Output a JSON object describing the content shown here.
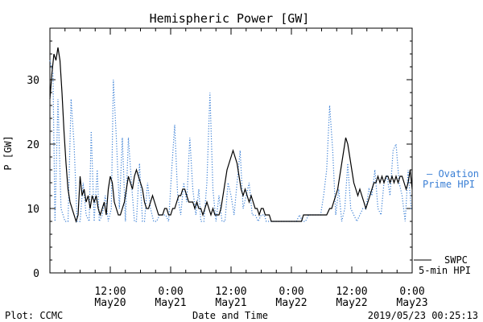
{
  "chart_data": {
    "type": "line",
    "title": "Hemispheric Power [GW]",
    "xlabel": "Date and Time",
    "ylabel": "P [GW]",
    "ylim": [
      0,
      38
    ],
    "grid": false,
    "x_ticks": [
      {
        "t": 12,
        "time": "12:00",
        "date": "May20"
      },
      {
        "t": 24,
        "time": "0:00",
        "date": "May21"
      },
      {
        "t": 36,
        "time": "12:00",
        "date": "May21"
      },
      {
        "t": 48,
        "time": "0:00",
        "date": "May22"
      },
      {
        "t": 60,
        "time": "12:00",
        "date": "May22"
      },
      {
        "t": 72,
        "time": "0:00",
        "date": "May23"
      }
    ],
    "y_ticks": [
      0,
      10,
      20,
      30
    ],
    "x_range_hours": [
      0,
      72
    ],
    "series": [
      {
        "name": "SWPC 5-min HPI",
        "color": "#000000",
        "style": "solid",
        "points": [
          [
            0,
            27
          ],
          [
            0.4,
            31
          ],
          [
            0.8,
            34
          ],
          [
            1.2,
            33
          ],
          [
            1.6,
            35
          ],
          [
            2.0,
            33
          ],
          [
            2.4,
            28
          ],
          [
            2.8,
            22
          ],
          [
            3.2,
            17
          ],
          [
            3.6,
            13
          ],
          [
            4.0,
            11
          ],
          [
            4.4,
            10
          ],
          [
            4.8,
            9
          ],
          [
            5.2,
            8
          ],
          [
            5.6,
            9
          ],
          [
            6.0,
            15
          ],
          [
            6.4,
            12
          ],
          [
            6.8,
            13
          ],
          [
            7.2,
            11
          ],
          [
            7.6,
            12
          ],
          [
            8.0,
            10
          ],
          [
            8.4,
            12
          ],
          [
            8.8,
            11
          ],
          [
            9.2,
            12
          ],
          [
            9.6,
            10
          ],
          [
            10.0,
            9
          ],
          [
            10.4,
            10
          ],
          [
            10.8,
            11
          ],
          [
            11.2,
            9
          ],
          [
            11.6,
            13
          ],
          [
            12.0,
            15
          ],
          [
            12.4,
            14
          ],
          [
            12.8,
            11
          ],
          [
            13.2,
            10
          ],
          [
            13.6,
            9
          ],
          [
            14.0,
            9
          ],
          [
            14.4,
            10
          ],
          [
            14.8,
            11
          ],
          [
            15.2,
            13
          ],
          [
            15.6,
            15
          ],
          [
            16.0,
            14
          ],
          [
            16.4,
            13
          ],
          [
            16.8,
            15
          ],
          [
            17.2,
            16
          ],
          [
            17.6,
            15
          ],
          [
            18.0,
            14
          ],
          [
            18.4,
            13
          ],
          [
            18.8,
            11
          ],
          [
            19.2,
            10
          ],
          [
            19.6,
            10
          ],
          [
            20.0,
            11
          ],
          [
            20.4,
            12
          ],
          [
            20.8,
            11
          ],
          [
            21.2,
            10
          ],
          [
            21.6,
            9
          ],
          [
            22.0,
            9
          ],
          [
            22.4,
            9
          ],
          [
            22.8,
            10
          ],
          [
            23.2,
            10
          ],
          [
            23.6,
            9
          ],
          [
            24.0,
            9
          ],
          [
            24.4,
            10
          ],
          [
            24.8,
            10
          ],
          [
            25.2,
            11
          ],
          [
            25.6,
            12
          ],
          [
            26.0,
            12
          ],
          [
            26.4,
            13
          ],
          [
            26.8,
            13
          ],
          [
            27.2,
            12
          ],
          [
            27.6,
            11
          ],
          [
            28.0,
            11
          ],
          [
            28.4,
            11
          ],
          [
            28.8,
            10
          ],
          [
            29.2,
            11
          ],
          [
            29.6,
            10
          ],
          [
            30.0,
            10
          ],
          [
            30.4,
            9
          ],
          [
            30.8,
            10
          ],
          [
            31.2,
            11
          ],
          [
            31.6,
            10
          ],
          [
            32.0,
            9
          ],
          [
            32.4,
            10
          ],
          [
            32.8,
            9
          ],
          [
            33.2,
            9
          ],
          [
            33.6,
            9
          ],
          [
            34.0,
            10
          ],
          [
            34.4,
            12
          ],
          [
            34.8,
            14
          ],
          [
            35.2,
            16
          ],
          [
            35.6,
            17
          ],
          [
            36.0,
            18
          ],
          [
            36.4,
            19
          ],
          [
            36.8,
            18
          ],
          [
            37.2,
            17
          ],
          [
            37.6,
            15
          ],
          [
            38.0,
            13
          ],
          [
            38.4,
            12
          ],
          [
            38.8,
            13
          ],
          [
            39.2,
            12
          ],
          [
            39.6,
            11
          ],
          [
            40.0,
            12
          ],
          [
            40.4,
            11
          ],
          [
            40.8,
            10
          ],
          [
            41.2,
            10
          ],
          [
            41.6,
            9
          ],
          [
            42.0,
            10
          ],
          [
            42.4,
            10
          ],
          [
            42.8,
            9
          ],
          [
            43.2,
            9
          ],
          [
            43.6,
            9
          ],
          [
            44.0,
            8
          ],
          [
            46.0,
            8
          ],
          [
            48.0,
            8
          ],
          [
            50.0,
            8
          ],
          [
            50.4,
            9
          ],
          [
            51.0,
            9
          ],
          [
            52.0,
            9
          ],
          [
            53.0,
            9
          ],
          [
            54.0,
            9
          ],
          [
            55.0,
            9
          ],
          [
            55.6,
            10
          ],
          [
            56.0,
            10
          ],
          [
            56.4,
            11
          ],
          [
            56.8,
            12
          ],
          [
            57.2,
            13
          ],
          [
            57.6,
            15
          ],
          [
            58.0,
            17
          ],
          [
            58.4,
            19
          ],
          [
            58.8,
            21
          ],
          [
            59.2,
            20
          ],
          [
            59.6,
            18
          ],
          [
            60.0,
            16
          ],
          [
            60.4,
            14
          ],
          [
            60.8,
            13
          ],
          [
            61.2,
            12
          ],
          [
            61.6,
            13
          ],
          [
            62.0,
            12
          ],
          [
            62.4,
            11
          ],
          [
            62.8,
            10
          ],
          [
            63.2,
            11
          ],
          [
            63.6,
            12
          ],
          [
            64.0,
            13
          ],
          [
            64.4,
            14
          ],
          [
            64.8,
            14
          ],
          [
            65.2,
            15
          ],
          [
            65.6,
            14
          ],
          [
            66.0,
            15
          ],
          [
            66.4,
            14
          ],
          [
            66.8,
            15
          ],
          [
            67.2,
            15
          ],
          [
            67.6,
            14
          ],
          [
            68.0,
            15
          ],
          [
            68.4,
            14
          ],
          [
            68.8,
            15
          ],
          [
            69.2,
            14
          ],
          [
            69.6,
            15
          ],
          [
            70.0,
            15
          ],
          [
            70.4,
            14
          ],
          [
            70.8,
            13
          ],
          [
            71.2,
            14
          ],
          [
            71.6,
            16
          ],
          [
            72.0,
            13
          ]
        ]
      },
      {
        "name": "Ovation Prime HPI",
        "color": "#3a7fd5",
        "style": "dotted",
        "points": [
          [
            0,
            33
          ],
          [
            0.6,
            31
          ],
          [
            1.0,
            8
          ],
          [
            1.6,
            27
          ],
          [
            2.2,
            10
          ],
          [
            2.6,
            9
          ],
          [
            3.0,
            8
          ],
          [
            3.6,
            8
          ],
          [
            4.2,
            27
          ],
          [
            4.8,
            20
          ],
          [
            5.4,
            8
          ],
          [
            6.0,
            8
          ],
          [
            6.6,
            14
          ],
          [
            7.2,
            9
          ],
          [
            7.8,
            8
          ],
          [
            8.2,
            22
          ],
          [
            8.8,
            8
          ],
          [
            9.4,
            16
          ],
          [
            9.8,
            8
          ],
          [
            10.4,
            9
          ],
          [
            11.0,
            12
          ],
          [
            11.6,
            8
          ],
          [
            12.2,
            10
          ],
          [
            12.6,
            30
          ],
          [
            13.2,
            21
          ],
          [
            13.8,
            10
          ],
          [
            14.4,
            21
          ],
          [
            15.0,
            8
          ],
          [
            15.6,
            21
          ],
          [
            16.2,
            14
          ],
          [
            16.8,
            8
          ],
          [
            17.2,
            8
          ],
          [
            17.8,
            17
          ],
          [
            18.4,
            8
          ],
          [
            18.8,
            8
          ],
          [
            19.4,
            14
          ],
          [
            20.0,
            10
          ],
          [
            20.6,
            8
          ],
          [
            21.2,
            8
          ],
          [
            21.8,
            9
          ],
          [
            22.4,
            9
          ],
          [
            23.0,
            9
          ],
          [
            23.6,
            8
          ],
          [
            24.2,
            16
          ],
          [
            24.8,
            23
          ],
          [
            25.4,
            12
          ],
          [
            26.0,
            9
          ],
          [
            26.6,
            14
          ],
          [
            27.2,
            11
          ],
          [
            27.8,
            21
          ],
          [
            28.4,
            13
          ],
          [
            29.0,
            9
          ],
          [
            29.6,
            13
          ],
          [
            30.0,
            8
          ],
          [
            30.6,
            8
          ],
          [
            31.2,
            14
          ],
          [
            31.8,
            28
          ],
          [
            32.4,
            13
          ],
          [
            33.0,
            8
          ],
          [
            33.6,
            12
          ],
          [
            34.2,
            8
          ],
          [
            34.8,
            8
          ],
          [
            35.4,
            14
          ],
          [
            36.0,
            12
          ],
          [
            36.6,
            9
          ],
          [
            37.2,
            14
          ],
          [
            37.8,
            19
          ],
          [
            38.4,
            10
          ],
          [
            39.0,
            12
          ],
          [
            39.6,
            14
          ],
          [
            40.2,
            9
          ],
          [
            40.8,
            9
          ],
          [
            41.4,
            8
          ],
          [
            42.0,
            9
          ],
          [
            42.6,
            9
          ],
          [
            43.0,
            8
          ],
          [
            44.0,
            8
          ],
          [
            45.0,
            8
          ],
          [
            46.0,
            8
          ],
          [
            47.0,
            8
          ],
          [
            48.0,
            8
          ],
          [
            49.0,
            8
          ],
          [
            49.6,
            9
          ],
          [
            50.2,
            8
          ],
          [
            50.8,
            8
          ],
          [
            51.4,
            9
          ],
          [
            52.0,
            9
          ],
          [
            52.6,
            9
          ],
          [
            53.2,
            9
          ],
          [
            53.8,
            9
          ],
          [
            54.4,
            12
          ],
          [
            55.0,
            16
          ],
          [
            55.6,
            26
          ],
          [
            56.2,
            19
          ],
          [
            56.8,
            9
          ],
          [
            57.4,
            13
          ],
          [
            58.0,
            8
          ],
          [
            58.6,
            10
          ],
          [
            59.2,
            17
          ],
          [
            59.8,
            10
          ],
          [
            60.4,
            9
          ],
          [
            61.0,
            8
          ],
          [
            61.6,
            9
          ],
          [
            62.2,
            10
          ],
          [
            62.8,
            10
          ],
          [
            63.4,
            13
          ],
          [
            64.0,
            12
          ],
          [
            64.6,
            16
          ],
          [
            65.2,
            10
          ],
          [
            65.8,
            9
          ],
          [
            66.4,
            14
          ],
          [
            67.0,
            15
          ],
          [
            67.6,
            12
          ],
          [
            68.2,
            19
          ],
          [
            68.8,
            20
          ],
          [
            69.4,
            14
          ],
          [
            70.0,
            12
          ],
          [
            70.6,
            8
          ],
          [
            71.2,
            16
          ],
          [
            71.8,
            10
          ],
          [
            72.0,
            10
          ]
        ]
      }
    ]
  },
  "labels": {
    "title": "Hemispheric Power [GW]",
    "ylabel": "P [GW]",
    "xlabel": "Date and Time",
    "footer_left": "Plot: CCMC",
    "footer_right": "2019/05/23 00:25:13",
    "legend_ovation_line1": "— Ovation",
    "legend_ovation_line2": "Prime HPI",
    "legend_swpc_line1": "SWPC",
    "legend_swpc_line2": "5-min HPI"
  },
  "colors": {
    "axis": "#000000",
    "ovation": "#3a7fd5",
    "swpc": "#000000"
  }
}
